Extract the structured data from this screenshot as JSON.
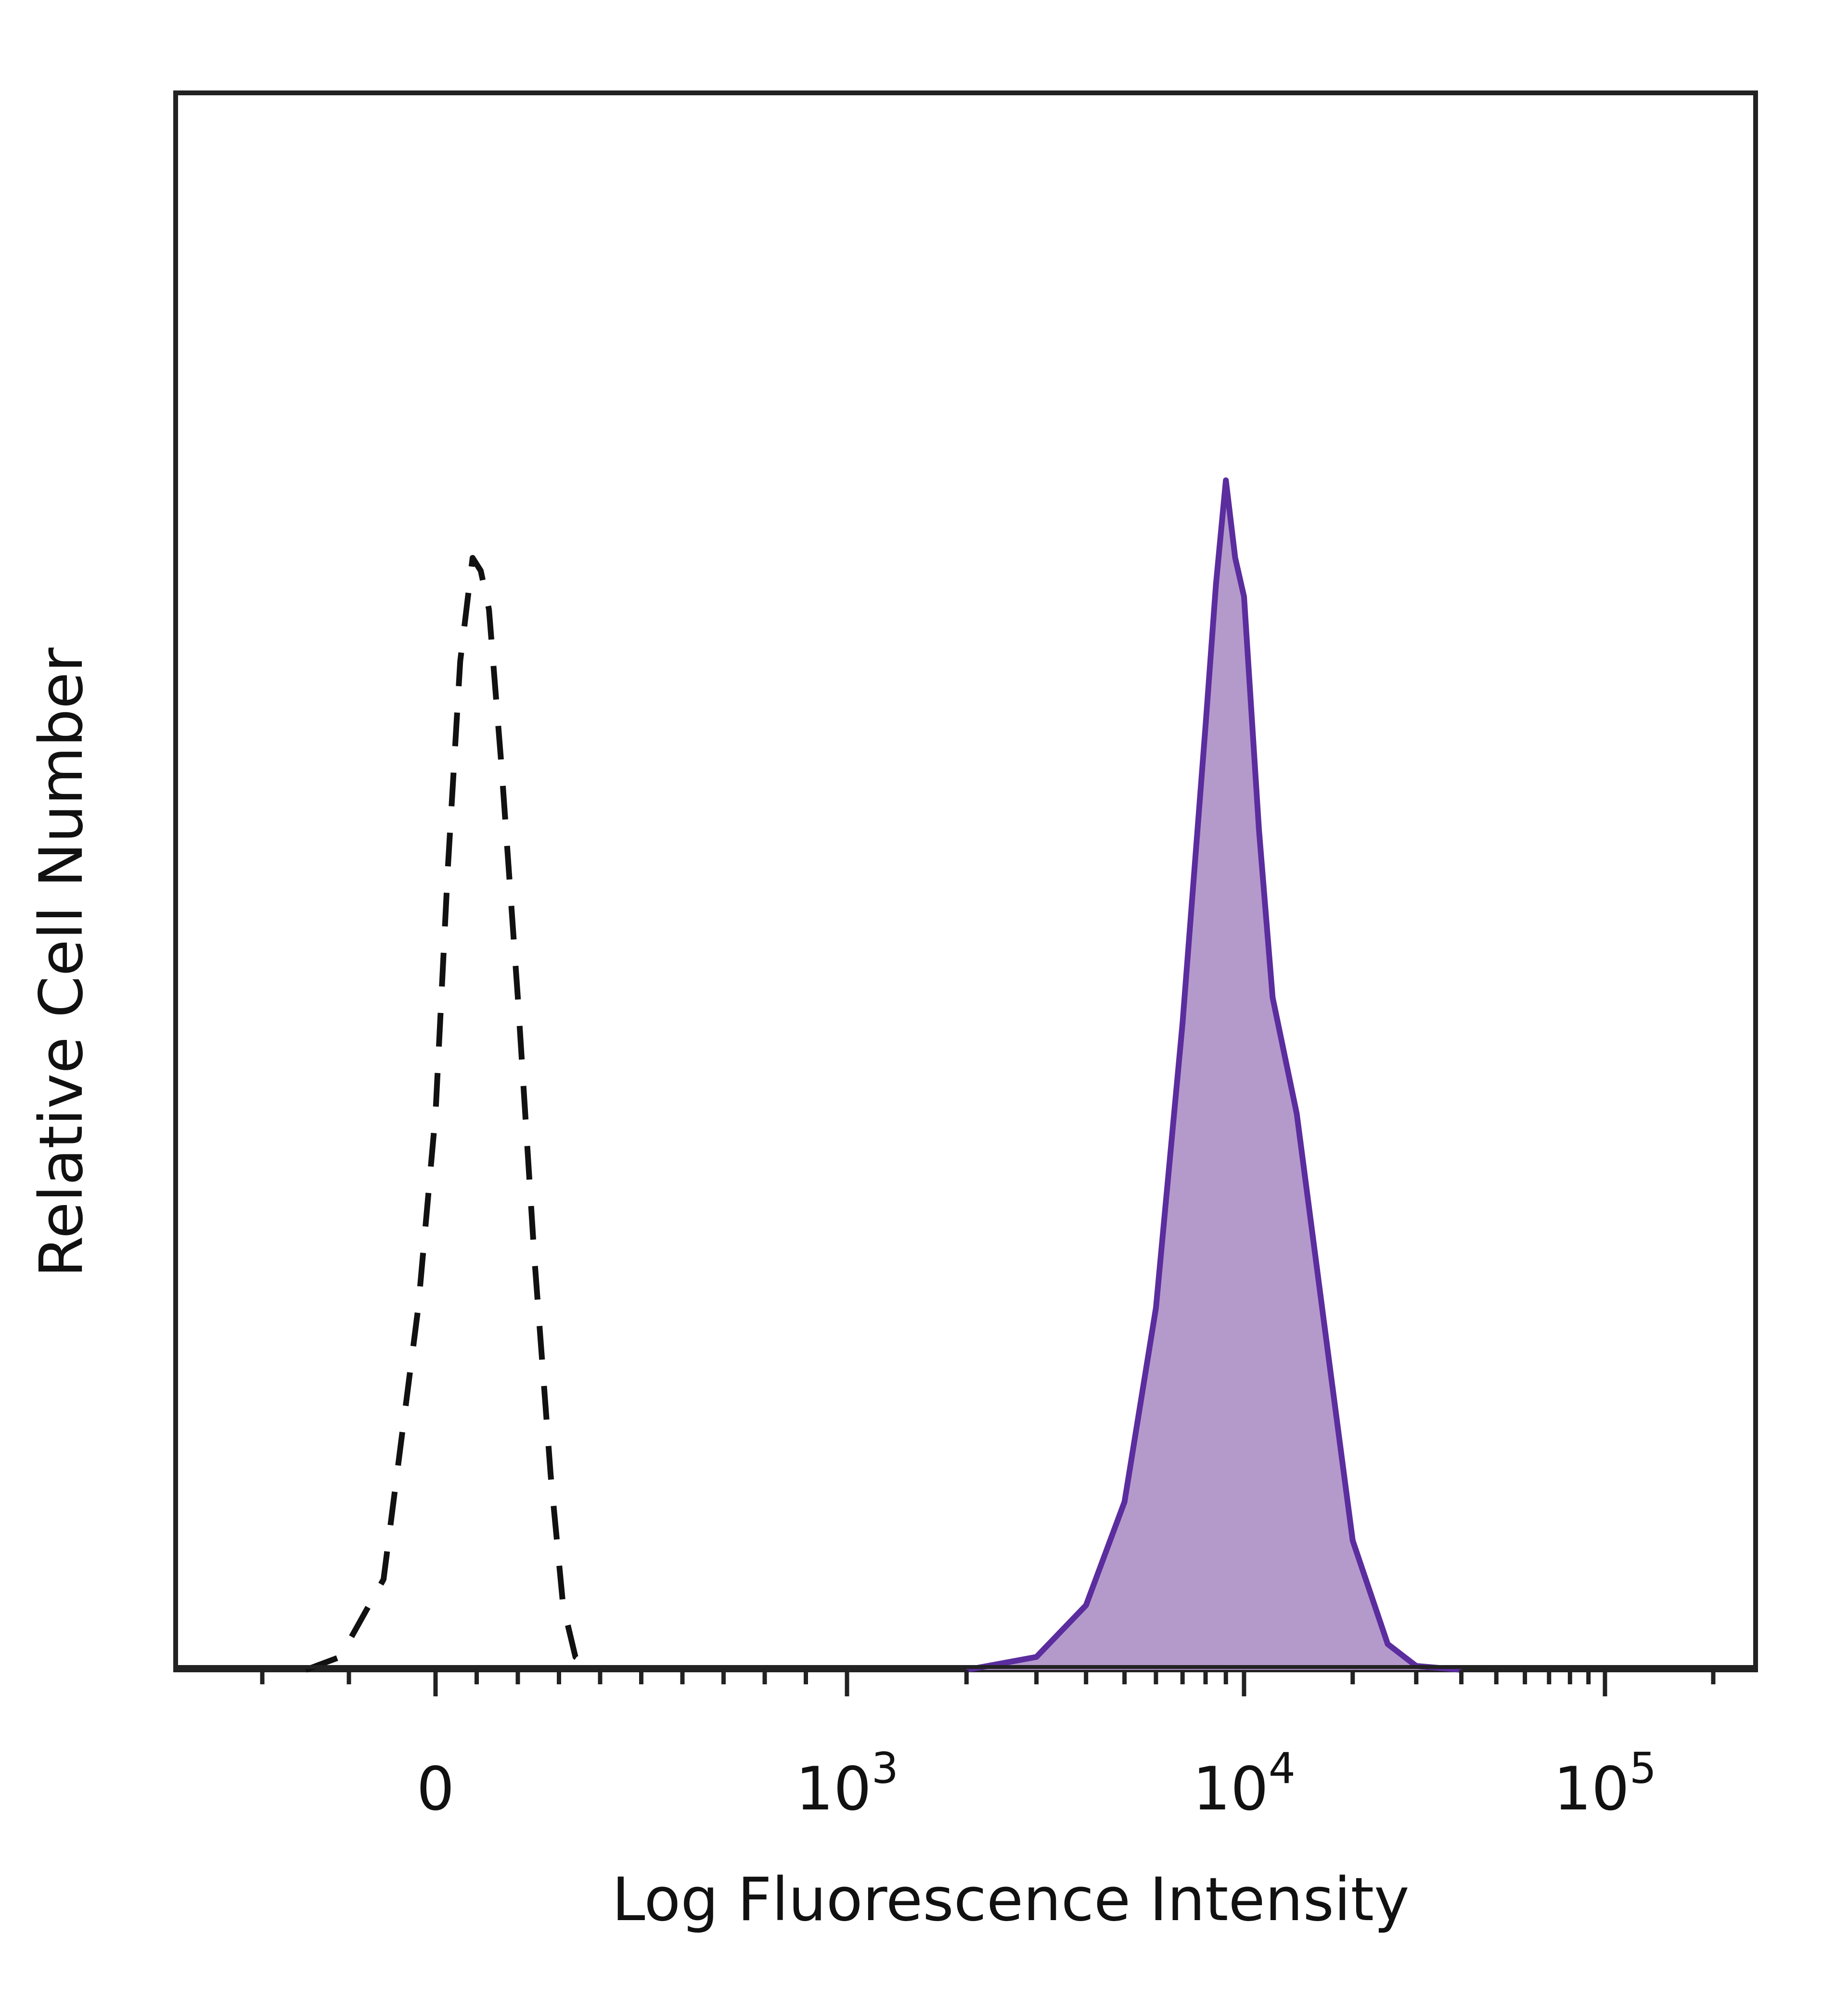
{
  "chart_data": {
    "type": "area",
    "title": "",
    "xlabel": "Log Fluorescence Intensity",
    "ylabel": "Relative Cell Number",
    "x_scale": "biexponential",
    "xlim": [
      -300,
      200000
    ],
    "ylim": [
      0,
      100
    ],
    "grid": false,
    "legend": "none",
    "x_ticks": [
      {
        "value": 0,
        "base": "0",
        "exponent": ""
      },
      {
        "value": 1000,
        "base": "10",
        "exponent": "3"
      },
      {
        "value": 10000,
        "base": "10",
        "exponent": "4"
      },
      {
        "value": 100000,
        "base": "10",
        "exponent": "5"
      }
    ],
    "series": [
      {
        "style": "dashed",
        "color": "#111111",
        "fill": "none",
        "x": [
          -150,
          -110,
          -60,
          -20,
          0,
          30,
          60,
          90,
          110,
          130,
          160,
          200,
          240,
          280,
          310,
          340,
          370,
          400
        ],
        "y": [
          0,
          1,
          7,
          28,
          43,
          62,
          78,
          86,
          85,
          82,
          70,
          52,
          32,
          15,
          5,
          1,
          0.3,
          0
        ]
      },
      {
        "style": "solid",
        "color": "#5b2d9e",
        "fill": "#b49acb",
        "x": [
          2000,
          3000,
          4000,
          5000,
          6000,
          7000,
          8000,
          8500,
          9000,
          9500,
          10000,
          11000,
          12000,
          14000,
          17000,
          20000,
          25000,
          30000,
          40000
        ],
        "y": [
          0,
          1,
          5,
          13,
          28,
          50,
          73,
          84,
          92,
          86,
          83,
          65,
          52,
          43,
          25,
          10,
          2,
          0.3,
          0
        ]
      }
    ]
  }
}
